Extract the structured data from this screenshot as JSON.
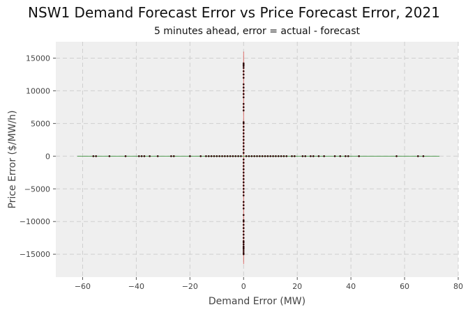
{
  "chart_data": {
    "type": "scatter",
    "title": "NSW1 Demand Forecast Error vs Price Forecast Error, 2021",
    "subtitle": "5 minutes ahead, error = actual - forecast",
    "xlabel": "Demand Error (MW)",
    "ylabel": "Price Error ($/MW/h)",
    "xlim": [
      -70,
      80
    ],
    "ylim": [
      -18500,
      17500
    ],
    "xticks": [
      -60,
      -40,
      -20,
      0,
      20,
      40,
      60,
      80
    ],
    "yticks": [
      -15000,
      -10000,
      -5000,
      0,
      5000,
      10000,
      15000
    ],
    "grid": true,
    "background_color": "#efefef",
    "point_color": "#2b0000",
    "reference_lines": {
      "vertical": {
        "x": 0,
        "y_range": [
          -16500,
          16000
        ],
        "color": "#d9534f"
      },
      "horizontal": {
        "y": 0,
        "x_range": [
          -62,
          73
        ],
        "color": "#3a8f3a"
      }
    },
    "x_at_zero_price": [
      -56,
      -55,
      -50,
      -44,
      -39,
      -38,
      -37,
      -35,
      -32,
      -27,
      -26,
      -20,
      -16,
      -14,
      -13,
      -12,
      -11,
      -10,
      -9,
      -8,
      -7,
      -6,
      -5,
      -4,
      -3,
      -2,
      -1,
      1,
      2,
      3,
      4,
      5,
      6,
      7,
      8,
      9,
      10,
      11,
      12,
      13,
      14,
      15,
      16,
      18,
      19,
      22,
      23,
      25,
      26,
      28,
      30,
      34,
      36,
      38,
      39,
      43,
      57,
      65,
      67
    ],
    "y_at_zero_demand": [
      -15000,
      -14800,
      -14500,
      -14200,
      -14000,
      -13800,
      -13500,
      -13200,
      -13000,
      -12500,
      -12000,
      -11500,
      -11000,
      -10500,
      -10000,
      -9800,
      -9000,
      -8000,
      -7500,
      -7000,
      -6000,
      -5500,
      -5000,
      -4500,
      -4000,
      -3500,
      -3000,
      -2500,
      -2000,
      -1500,
      -1000,
      -500,
      500,
      1000,
      1500,
      2000,
      2500,
      3000,
      3500,
      4000,
      4500,
      5000,
      5200,
      7000,
      7500,
      8000,
      9000,
      9500,
      10000,
      10500,
      11000,
      12000,
      12500,
      13000,
      13500,
      13800,
      14000,
      14200
    ]
  }
}
